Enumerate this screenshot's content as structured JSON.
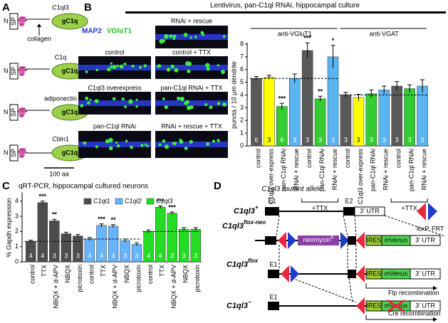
{
  "panel_a": {
    "letter": "A",
    "collagen": "collagen",
    "scale": "100 aa",
    "proteins": [
      {
        "name": "C1ql3",
        "n": "N",
        "sp": "SP",
        "domain": "gC1q"
      },
      {
        "name": "C1q",
        "n": "N",
        "sp": "SP",
        "domain": "gC1q"
      },
      {
        "name": "adiponectin",
        "n": "N",
        "sp": "SP",
        "domain": "gC1q"
      },
      {
        "name": "Cbln1",
        "n": "N",
        "sp": "SP",
        "domain": "gC1q"
      }
    ]
  },
  "panel_b": {
    "letter": "B",
    "title": "Lentivirus, pan-C1ql RNAi, hippocampal culture",
    "stain1": "MAP2",
    "stain2": "VGluT1",
    "images": [
      "RNAi + rescue",
      "control",
      "control + TTX",
      "C1ql3 overexpress",
      "pan-C1ql RNAi + TTX",
      "pan-C1ql RNAi",
      "RNAi + rescue + TTX"
    ]
  },
  "chart_data": [
    {
      "type": "bar",
      "ylabel": "puncta / 10 μm dendrite",
      "ylim": [
        0,
        8
      ],
      "yticks": [
        0,
        1,
        2,
        3,
        4,
        5,
        6,
        7,
        8
      ],
      "categories": [
        "control",
        "C1ql3 over-express",
        "pan-C1ql RNAi",
        "RNAi + rescue",
        "control",
        "pan-C1ql RNAi",
        "RNAi + rescue"
      ],
      "colors": [
        "#595959",
        "#ffff00",
        "#33cc33",
        "#5ab4f0",
        "#595959",
        "#33cc33",
        "#5ab4f0"
      ],
      "ttx_label": "+TTX",
      "series": [
        {
          "name": "anti-VGluT1",
          "values": [
            5.3,
            5.4,
            3.1,
            5.3,
            7.5,
            3.7,
            7.0
          ],
          "errors": [
            0.15,
            0.15,
            0.25,
            0.35,
            0.6,
            0.2,
            0.9
          ],
          "n": [
            6,
            3,
            6,
            3,
            3,
            3,
            3
          ],
          "stars": [
            null,
            null,
            "***",
            null,
            "***",
            "**",
            "*"
          ]
        },
        {
          "name": "anti-VGAT",
          "values": [
            4.0,
            3.8,
            4.1,
            4.4,
            4.7,
            4.5,
            4.7
          ],
          "errors": [
            0.2,
            0.25,
            0.3,
            0.3,
            0.35,
            0.3,
            0.5
          ],
          "n": [
            3,
            3,
            3,
            3,
            3,
            3,
            3
          ],
          "stars": [
            null,
            null,
            null,
            null,
            null,
            null,
            null
          ]
        }
      ]
    },
    {
      "type": "bar",
      "title": "qRT-PCR, hippocampal cultured neurons",
      "ylabel": "% Gapdh expression",
      "ylim": [
        0,
        4.5
      ],
      "yticks": [
        0,
        1,
        2,
        3,
        4
      ],
      "legend": "top-center",
      "categories": [
        "control",
        "TTX",
        "NBQX + d-APV",
        "NBQX",
        "picrotoxin"
      ],
      "series": [
        {
          "name": "C1ql1",
          "color": "#4d4d4d",
          "values": [
            1.35,
            3.9,
            2.7,
            1.85,
            1.7
          ],
          "errors": [
            0.08,
            0.1,
            0.1,
            0.1,
            0.1
          ],
          "n": [
            4,
            4,
            3,
            3,
            3
          ],
          "stars": [
            null,
            "***",
            "**",
            null,
            null
          ]
        },
        {
          "name": "C1ql2",
          "color": "#66b3ff",
          "values": [
            1.5,
            2.4,
            2.35,
            1.4,
            1.15
          ],
          "errors": [
            0.1,
            0.1,
            0.1,
            0.1,
            0.1
          ],
          "n": [
            4,
            4,
            3,
            3,
            3
          ],
          "stars": [
            null,
            "***",
            "**",
            null,
            null
          ]
        },
        {
          "name": "C1ql3",
          "color": "#22dd22",
          "values": [
            2.0,
            3.6,
            3.2,
            2.15,
            2.15
          ],
          "errors": [
            0.1,
            0.08,
            0.08,
            0.1,
            0.1
          ],
          "n": [
            4,
            4,
            3,
            3,
            3
          ],
          "stars": [
            null,
            "***",
            "***",
            null,
            null
          ]
        }
      ]
    }
  ],
  "panel_c": {
    "letter": "C"
  },
  "panel_d": {
    "letter": "D",
    "title": "C1ql3 mutant allele",
    "loxp": "loxP",
    "frt": "FRT",
    "rows": [
      {
        "name": "C1ql3",
        "sup": "+",
        "e1": "E1",
        "e2": "E2",
        "utr": "3' UTR"
      },
      {
        "name": "C1ql3",
        "sup": "flox-neo",
        "neo": "neomycin",
        "neo_sup": "R",
        "ires": "IRES",
        "venus": "mVenus",
        "utr": "3' UTR"
      },
      {
        "name": "C1ql3",
        "sup": "flox",
        "e1": "E1",
        "ires": "IRES",
        "venus": "mVenus",
        "utr": "3' UTR",
        "note": "Flp recombination"
      },
      {
        "name": "C1ql3",
        "sup": "−",
        "e1": "E1",
        "ires": "IRES",
        "venus": "mVenus",
        "utr": "3' UTR",
        "note": "Cre recombination"
      }
    ]
  }
}
